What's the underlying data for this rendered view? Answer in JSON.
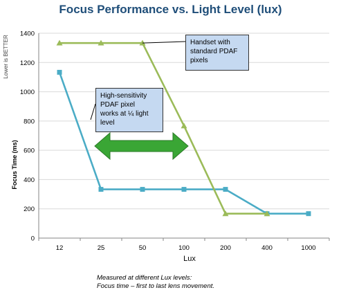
{
  "chart_data": {
    "type": "line",
    "title": "Focus Performance vs. Light Level (lux)",
    "xlabel": "Lux",
    "ylabel": "Focus Time (ms)",
    "ylabel_note": "Lower is BETTER",
    "categories": [
      "12",
      "25",
      "50",
      "100",
      "200",
      "400",
      "1000"
    ],
    "ylim": [
      0,
      1400
    ],
    "yticks": [
      0,
      200,
      400,
      600,
      800,
      1000,
      1200,
      1400
    ],
    "grid": "horizontal",
    "series": [
      {
        "values": [
          1133,
          333,
          333,
          333,
          333,
          167,
          167
        ],
        "color": "#4bacc6",
        "marker": "square"
      },
      {
        "values": [
          1333,
          1333,
          1333,
          767,
          167,
          167,
          null
        ],
        "color": "#9bbb59",
        "marker": "triangle"
      }
    ],
    "annotations": {
      "handset_lines": [
        "Handset with",
        "standard PDAF",
        "pixels"
      ],
      "hs_lines": [
        "High-sensitivity",
        "PDAF pixel",
        "works at ¼ light",
        "level"
      ]
    },
    "arrow_color": "#3aa635",
    "callout_color": "#c5d9f1"
  },
  "footnote": {
    "line1": "Measured at different Lux levels:",
    "line2": "Focus time – first to last lens movement."
  }
}
